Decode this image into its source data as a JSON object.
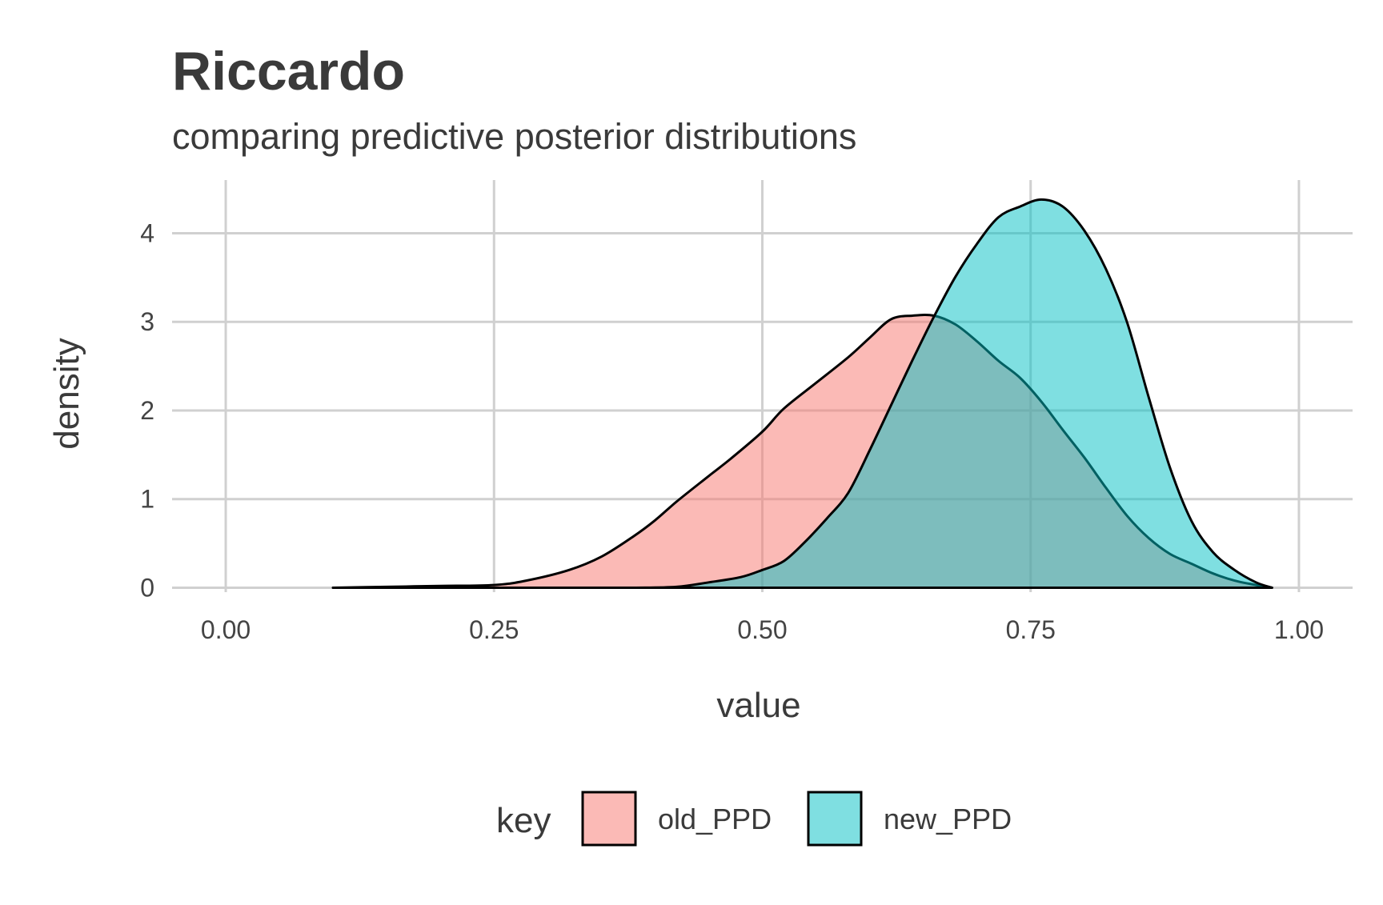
{
  "chart_data": {
    "type": "area",
    "title": "Riccardo",
    "subtitle": "comparing predictive posterior distributions",
    "xlabel": "value",
    "ylabel": "density",
    "xlim": [
      -0.05,
      1.05
    ],
    "ylim": [
      -0.05,
      4.6
    ],
    "x_ticks": [
      0.0,
      0.25,
      0.5,
      0.75,
      1.0
    ],
    "x_tick_labels": [
      "0.00",
      "0.25",
      "0.50",
      "0.75",
      "1.00"
    ],
    "y_ticks": [
      0,
      1,
      2,
      3,
      4
    ],
    "y_tick_labels": [
      "0",
      "1",
      "2",
      "3",
      "4"
    ],
    "grid": true,
    "legend_title": "key",
    "legend_position": "bottom",
    "series": [
      {
        "name": "old_PPD",
        "color": "#F8766D",
        "x": [
          0.1,
          0.15,
          0.2,
          0.25,
          0.28,
          0.32,
          0.35,
          0.38,
          0.4,
          0.42,
          0.45,
          0.47,
          0.5,
          0.52,
          0.55,
          0.58,
          0.6,
          0.62,
          0.64,
          0.66,
          0.68,
          0.7,
          0.72,
          0.74,
          0.76,
          0.78,
          0.8,
          0.82,
          0.84,
          0.86,
          0.88,
          0.9,
          0.92,
          0.94,
          0.96,
          0.975
        ],
        "y": [
          0.0,
          0.01,
          0.02,
          0.03,
          0.08,
          0.2,
          0.35,
          0.58,
          0.76,
          0.97,
          1.26,
          1.45,
          1.76,
          2.02,
          2.31,
          2.6,
          2.82,
          3.03,
          3.07,
          3.07,
          2.97,
          2.78,
          2.56,
          2.37,
          2.1,
          1.78,
          1.47,
          1.13,
          0.81,
          0.56,
          0.38,
          0.27,
          0.16,
          0.08,
          0.03,
          0.0
        ]
      },
      {
        "name": "new_PPD",
        "color": "#00BFC4",
        "x": [
          0.1,
          0.2,
          0.3,
          0.38,
          0.42,
          0.45,
          0.48,
          0.5,
          0.52,
          0.54,
          0.56,
          0.58,
          0.6,
          0.62,
          0.64,
          0.66,
          0.68,
          0.7,
          0.72,
          0.74,
          0.76,
          0.78,
          0.8,
          0.82,
          0.84,
          0.86,
          0.88,
          0.9,
          0.92,
          0.94,
          0.96,
          0.975
        ],
        "y": [
          0.0,
          0.0,
          0.0,
          0.0,
          0.01,
          0.06,
          0.12,
          0.2,
          0.3,
          0.52,
          0.78,
          1.07,
          1.55,
          2.06,
          2.57,
          3.06,
          3.51,
          3.88,
          4.18,
          4.3,
          4.38,
          4.3,
          4.03,
          3.6,
          2.99,
          2.15,
          1.35,
          0.75,
          0.4,
          0.2,
          0.06,
          0.0
        ]
      }
    ]
  }
}
